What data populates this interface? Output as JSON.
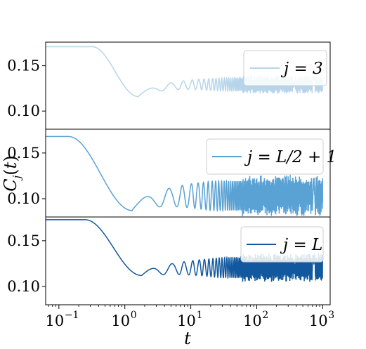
{
  "figure": {
    "xlabel": "t",
    "ylabel": "C_j(t)"
  },
  "chart_data": [
    {
      "type": "line",
      "panel": "top",
      "legend": "j = 3",
      "color": "#b7d5ea",
      "xscale": "log",
      "xlim": [
        0.063,
        1300
      ],
      "ylim": [
        0.08,
        0.176
      ],
      "yticks": [
        0.1,
        0.15
      ],
      "legend_position": "right",
      "series_shape": {
        "plateau": 0.171,
        "plateau_until": 0.32,
        "first_min_t": 1.6,
        "first_min": 0.116,
        "late_mean": 0.13,
        "late_amp": 0.007,
        "osc_start": 2.2
      }
    },
    {
      "type": "line",
      "panel": "middle",
      "legend": "j = L/2 + 1",
      "color": "#5aa2d4",
      "xscale": "log",
      "xlim": [
        0.063,
        1300
      ],
      "ylim": [
        0.08,
        0.176
      ],
      "yticks": [
        0.1,
        0.15
      ],
      "legend_position": "top-right",
      "series_shape": {
        "plateau": 0.168,
        "plateau_until": 0.14,
        "first_min_t": 1.3,
        "first_min": 0.087,
        "late_mean": 0.104,
        "late_amp": 0.016,
        "osc_start": 1.6
      }
    },
    {
      "type": "line",
      "panel": "bottom",
      "legend": "j = L",
      "color": "#11589f",
      "xscale": "log",
      "xlim": [
        0.063,
        1300
      ],
      "ylim": [
        0.08,
        0.176
      ],
      "yticks": [
        0.1,
        0.15
      ],
      "legend_position": "top-right",
      "series_shape": {
        "plateau": 0.173,
        "plateau_until": 0.25,
        "first_min_t": 1.8,
        "first_min": 0.112,
        "late_mean": 0.121,
        "late_amp": 0.011,
        "osc_start": 2.5
      }
    }
  ],
  "x_ticks": [
    {
      "base": "10",
      "exp": "−1",
      "value": 0.1
    },
    {
      "base": "10",
      "exp": "0",
      "value": 1
    },
    {
      "base": "10",
      "exp": "1",
      "value": 10
    },
    {
      "base": "10",
      "exp": "2",
      "value": 100
    },
    {
      "base": "10",
      "exp": "3",
      "value": 1000
    }
  ],
  "y_tick_labels": [
    "0.15",
    "0.10"
  ]
}
